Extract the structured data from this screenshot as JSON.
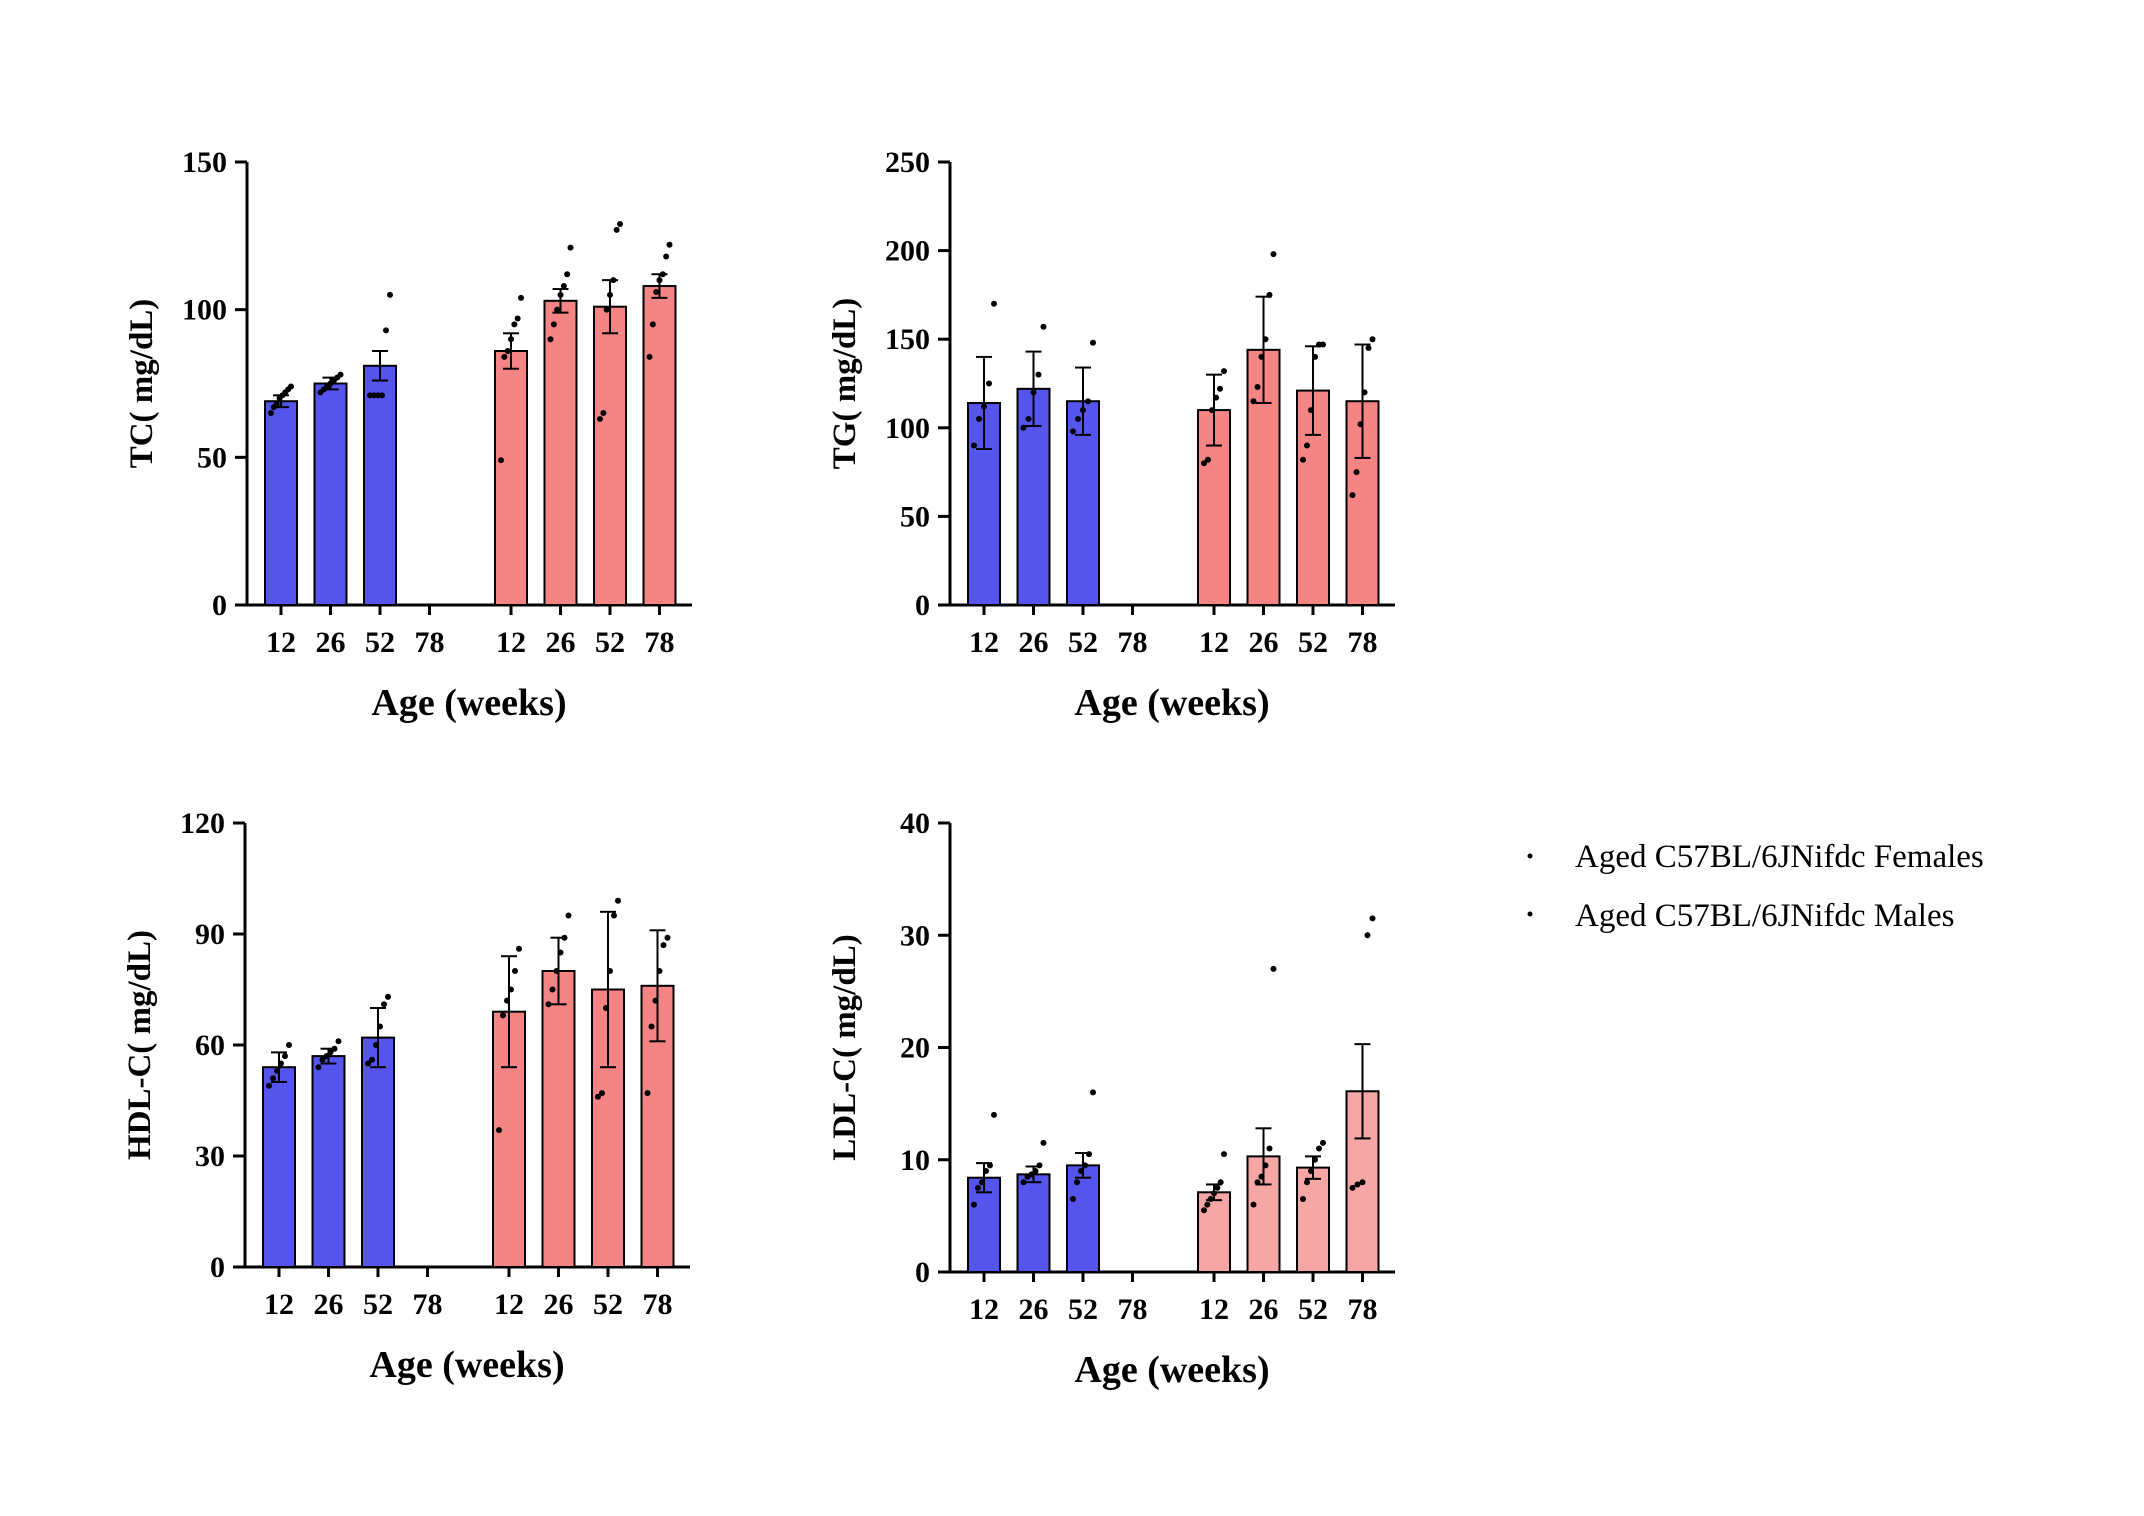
{
  "colors": {
    "females": "#5555ee",
    "males": "#f58585",
    "males_light": "#f7a6a6",
    "axis": "#000000"
  },
  "legend": [
    {
      "label": "Aged C57BL/6JNifdc Females"
    },
    {
      "label": "Aged C57BL/6JNifdc Males"
    }
  ],
  "chart_data": [
    {
      "type": "bar",
      "ylabel": "TC( mg/dL)",
      "xlabel": "Age  (weeks)",
      "ylim": [
        0,
        150
      ],
      "yticks": [
        0,
        50,
        100,
        150
      ],
      "categories": [
        "12",
        "26",
        "52",
        "78",
        "12",
        "26",
        "52",
        "78"
      ],
      "groups": [
        {
          "name": "Aged C57BL/6JNifdc Females",
          "color_key": "females",
          "bars": [
            {
              "x": "12",
              "mean": 69,
              "err": 2,
              "points": [
                65,
                67,
                68,
                70,
                71,
                72,
                73,
                74
              ]
            },
            {
              "x": "26",
              "mean": 75,
              "err": 2,
              "points": [
                72,
                73,
                74,
                75,
                76,
                77,
                78
              ]
            },
            {
              "x": "52",
              "mean": 81,
              "err": 5,
              "points": [
                71,
                71,
                71,
                71,
                93,
                105
              ]
            },
            {
              "x": "78",
              "mean": null,
              "err": null,
              "points": []
            }
          ]
        },
        {
          "name": "Aged C57BL/6JNifdc Males",
          "color_key": "males",
          "bars": [
            {
              "x": "12",
              "mean": 86,
              "err": 6,
              "points": [
                49,
                84,
                86,
                90,
                95,
                97,
                104
              ]
            },
            {
              "x": "26",
              "mean": 103,
              "err": 4,
              "points": [
                90,
                95,
                100,
                105,
                108,
                112,
                121
              ]
            },
            {
              "x": "52",
              "mean": 101,
              "err": 9,
              "points": [
                63,
                65,
                100,
                105,
                110,
                127,
                129
              ]
            },
            {
              "x": "78",
              "mean": 108,
              "err": 4,
              "points": [
                84,
                95,
                106,
                110,
                112,
                118,
                122
              ]
            }
          ]
        }
      ]
    },
    {
      "type": "bar",
      "ylabel": "TG( mg/dL)",
      "xlabel": "Age  (weeks)",
      "ylim": [
        0,
        250
      ],
      "yticks": [
        0,
        50,
        100,
        150,
        200,
        250
      ],
      "categories": [
        "12",
        "26",
        "52",
        "78",
        "12",
        "26",
        "52",
        "78"
      ],
      "groups": [
        {
          "name": "Aged C57BL/6JNifdc Females",
          "color_key": "females",
          "bars": [
            {
              "x": "12",
              "mean": 114,
              "err": 26,
              "points": [
                90,
                105,
                112,
                125,
                170
              ]
            },
            {
              "x": "26",
              "mean": 122,
              "err": 21,
              "points": [
                100,
                105,
                120,
                130,
                157
              ]
            },
            {
              "x": "52",
              "mean": 115,
              "err": 19,
              "points": [
                98,
                105,
                110,
                115,
                148
              ]
            },
            {
              "x": "78",
              "mean": null,
              "err": null,
              "points": []
            }
          ]
        },
        {
          "name": "Aged C57BL/6JNifdc Males",
          "color_key": "males",
          "bars": [
            {
              "x": "12",
              "mean": 110,
              "err": 20,
              "points": [
                80,
                82,
                110,
                117,
                122,
                132
              ]
            },
            {
              "x": "26",
              "mean": 144,
              "err": 30,
              "points": [
                115,
                123,
                140,
                150,
                175,
                198
              ]
            },
            {
              "x": "52",
              "mean": 121,
              "err": 25,
              "points": [
                82,
                90,
                110,
                140,
                147,
                147
              ]
            },
            {
              "x": "78",
              "mean": 115,
              "err": 32,
              "points": [
                62,
                75,
                102,
                120,
                145,
                150
              ]
            }
          ]
        }
      ]
    },
    {
      "type": "bar",
      "ylabel": "HDL-C( mg/dL)",
      "xlabel": "Age  (weeks)",
      "ylim": [
        0,
        120
      ],
      "yticks": [
        0,
        30,
        60,
        90,
        120
      ],
      "categories": [
        "12",
        "26",
        "52",
        "78",
        "12",
        "26",
        "52",
        "78"
      ],
      "groups": [
        {
          "name": "Aged C57BL/6JNifdc Females",
          "color_key": "females",
          "bars": [
            {
              "x": "12",
              "mean": 54,
              "err": 4,
              "points": [
                49,
                51,
                53,
                55,
                57,
                60
              ]
            },
            {
              "x": "26",
              "mean": 57,
              "err": 2,
              "points": [
                54,
                56,
                57,
                58,
                59,
                61
              ]
            },
            {
              "x": "52",
              "mean": 62,
              "err": 8,
              "points": [
                55,
                56,
                60,
                65,
                71,
                73
              ]
            },
            {
              "x": "78",
              "mean": null,
              "err": null,
              "points": []
            }
          ]
        },
        {
          "name": "Aged C57BL/6JNifdc Males",
          "color_key": "males",
          "bars": [
            {
              "x": "12",
              "mean": 69,
              "err": 15,
              "points": [
                37,
                68,
                72,
                75,
                80,
                86
              ]
            },
            {
              "x": "26",
              "mean": 80,
              "err": 9,
              "points": [
                71,
                75,
                80,
                85,
                89,
                95
              ]
            },
            {
              "x": "52",
              "mean": 75,
              "err": 21,
              "points": [
                46,
                47,
                70,
                80,
                95,
                99
              ]
            },
            {
              "x": "78",
              "mean": 76,
              "err": 15,
              "points": [
                47,
                65,
                72,
                80,
                87,
                89
              ]
            }
          ]
        }
      ]
    },
    {
      "type": "bar",
      "ylabel": "LDL-C( mg/dL)",
      "xlabel": "Age  (weeks)",
      "ylim": [
        0,
        40
      ],
      "yticks": [
        0,
        10,
        20,
        30,
        40
      ],
      "categories": [
        "12",
        "26",
        "52",
        "78",
        "12",
        "26",
        "52",
        "78"
      ],
      "groups": [
        {
          "name": "Aged C57BL/6JNifdc Females",
          "color_key": "females",
          "bars": [
            {
              "x": "12",
              "mean": 8.4,
              "err": 1.3,
              "points": [
                6,
                7.5,
                8,
                9,
                9.5,
                14
              ]
            },
            {
              "x": "26",
              "mean": 8.7,
              "err": 0.7,
              "points": [
                8,
                8.5,
                8.7,
                9,
                9.5,
                11.5
              ]
            },
            {
              "x": "52",
              "mean": 9.5,
              "err": 1.1,
              "points": [
                6.5,
                8,
                9,
                9.5,
                10.5,
                16
              ]
            },
            {
              "x": "78",
              "mean": null,
              "err": null,
              "points": []
            }
          ]
        },
        {
          "name": "Aged C57BL/6JNifdc Males",
          "color_key": "males_light",
          "bars": [
            {
              "x": "12",
              "mean": 7.1,
              "err": 0.7,
              "points": [
                5.5,
                6,
                6.5,
                7,
                7.5,
                8,
                10.5
              ]
            },
            {
              "x": "26",
              "mean": 10.3,
              "err": 2.5,
              "points": [
                6,
                8,
                8.5,
                9.5,
                11,
                27
              ]
            },
            {
              "x": "52",
              "mean": 9.3,
              "err": 1,
              "points": [
                6.5,
                8,
                9,
                10,
                11,
                11.5
              ]
            },
            {
              "x": "78",
              "mean": 16.1,
              "err": 4.2,
              "points": [
                7.5,
                7.8,
                8,
                30,
                31.5
              ]
            }
          ]
        }
      ]
    }
  ]
}
